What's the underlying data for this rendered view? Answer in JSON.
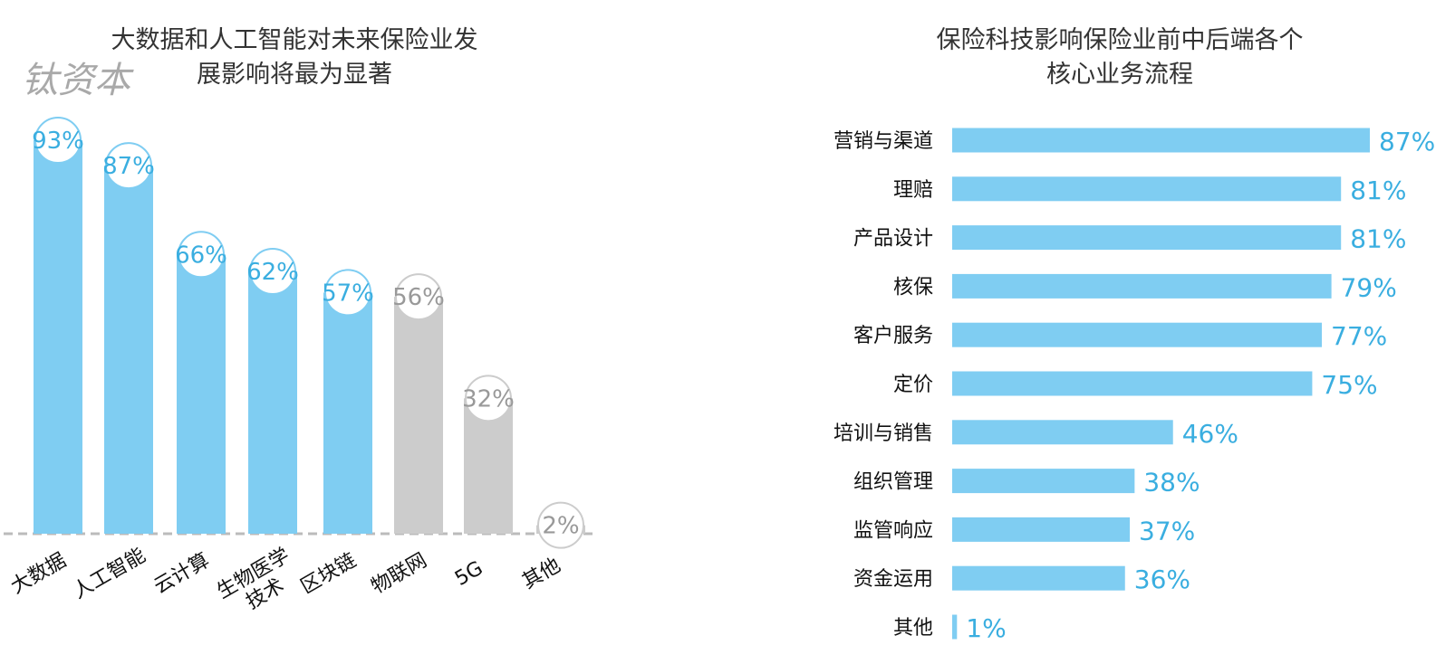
{
  "watermark": "钛资本",
  "chart_data": [
    {
      "type": "bar",
      "title_lines": [
        "大数据和人工智能对未来保险业发",
        "展影响将最为显著"
      ],
      "categories": [
        {
          "lines": [
            "大数据"
          ]
        },
        {
          "lines": [
            "人工智能"
          ]
        },
        {
          "lines": [
            "云计算"
          ]
        },
        {
          "lines": [
            "生物医学",
            "技术"
          ]
        },
        {
          "lines": [
            "区块链"
          ]
        },
        {
          "lines": [
            "物联网"
          ]
        },
        {
          "lines": [
            "5G"
          ]
        },
        {
          "lines": [
            "其他"
          ]
        }
      ],
      "values": [
        93,
        87,
        66,
        62,
        57,
        56,
        32,
        2
      ],
      "value_labels": [
        "93%",
        "87%",
        "66%",
        "62%",
        "57%",
        "56%",
        "32%",
        "2%"
      ],
      "highlighted": [
        true,
        true,
        true,
        true,
        true,
        false,
        false,
        false
      ],
      "colors": {
        "highlight": "#7fcdf2",
        "muted": "#cccccc",
        "label_highlight": "#3aaee0",
        "label_muted": "#999999",
        "baseline": "#bbbbbb"
      },
      "ylim": [
        0,
        100
      ],
      "baseline": "dashed",
      "grid": false
    },
    {
      "type": "bar",
      "orientation": "horizontal",
      "title_lines": [
        "保险科技影响保险业前中后端各个",
        "核心业务流程"
      ],
      "categories": [
        "营销与渠道",
        "理赔",
        "产品设计",
        "核保",
        "客户服务",
        "定价",
        "培训与销售",
        "组织管理",
        "监管响应",
        "资金运用",
        "其他"
      ],
      "values": [
        87,
        81,
        81,
        79,
        77,
        75,
        46,
        38,
        37,
        36,
        1
      ],
      "value_labels": [
        "87%",
        "81%",
        "81%",
        "79%",
        "77%",
        "75%",
        "46%",
        "38%",
        "37%",
        "36%",
        "1%"
      ],
      "colors": {
        "bar": "#7fcdf2",
        "label": "#3aaee0"
      },
      "xlim": [
        0,
        100
      ],
      "grid": false
    }
  ]
}
